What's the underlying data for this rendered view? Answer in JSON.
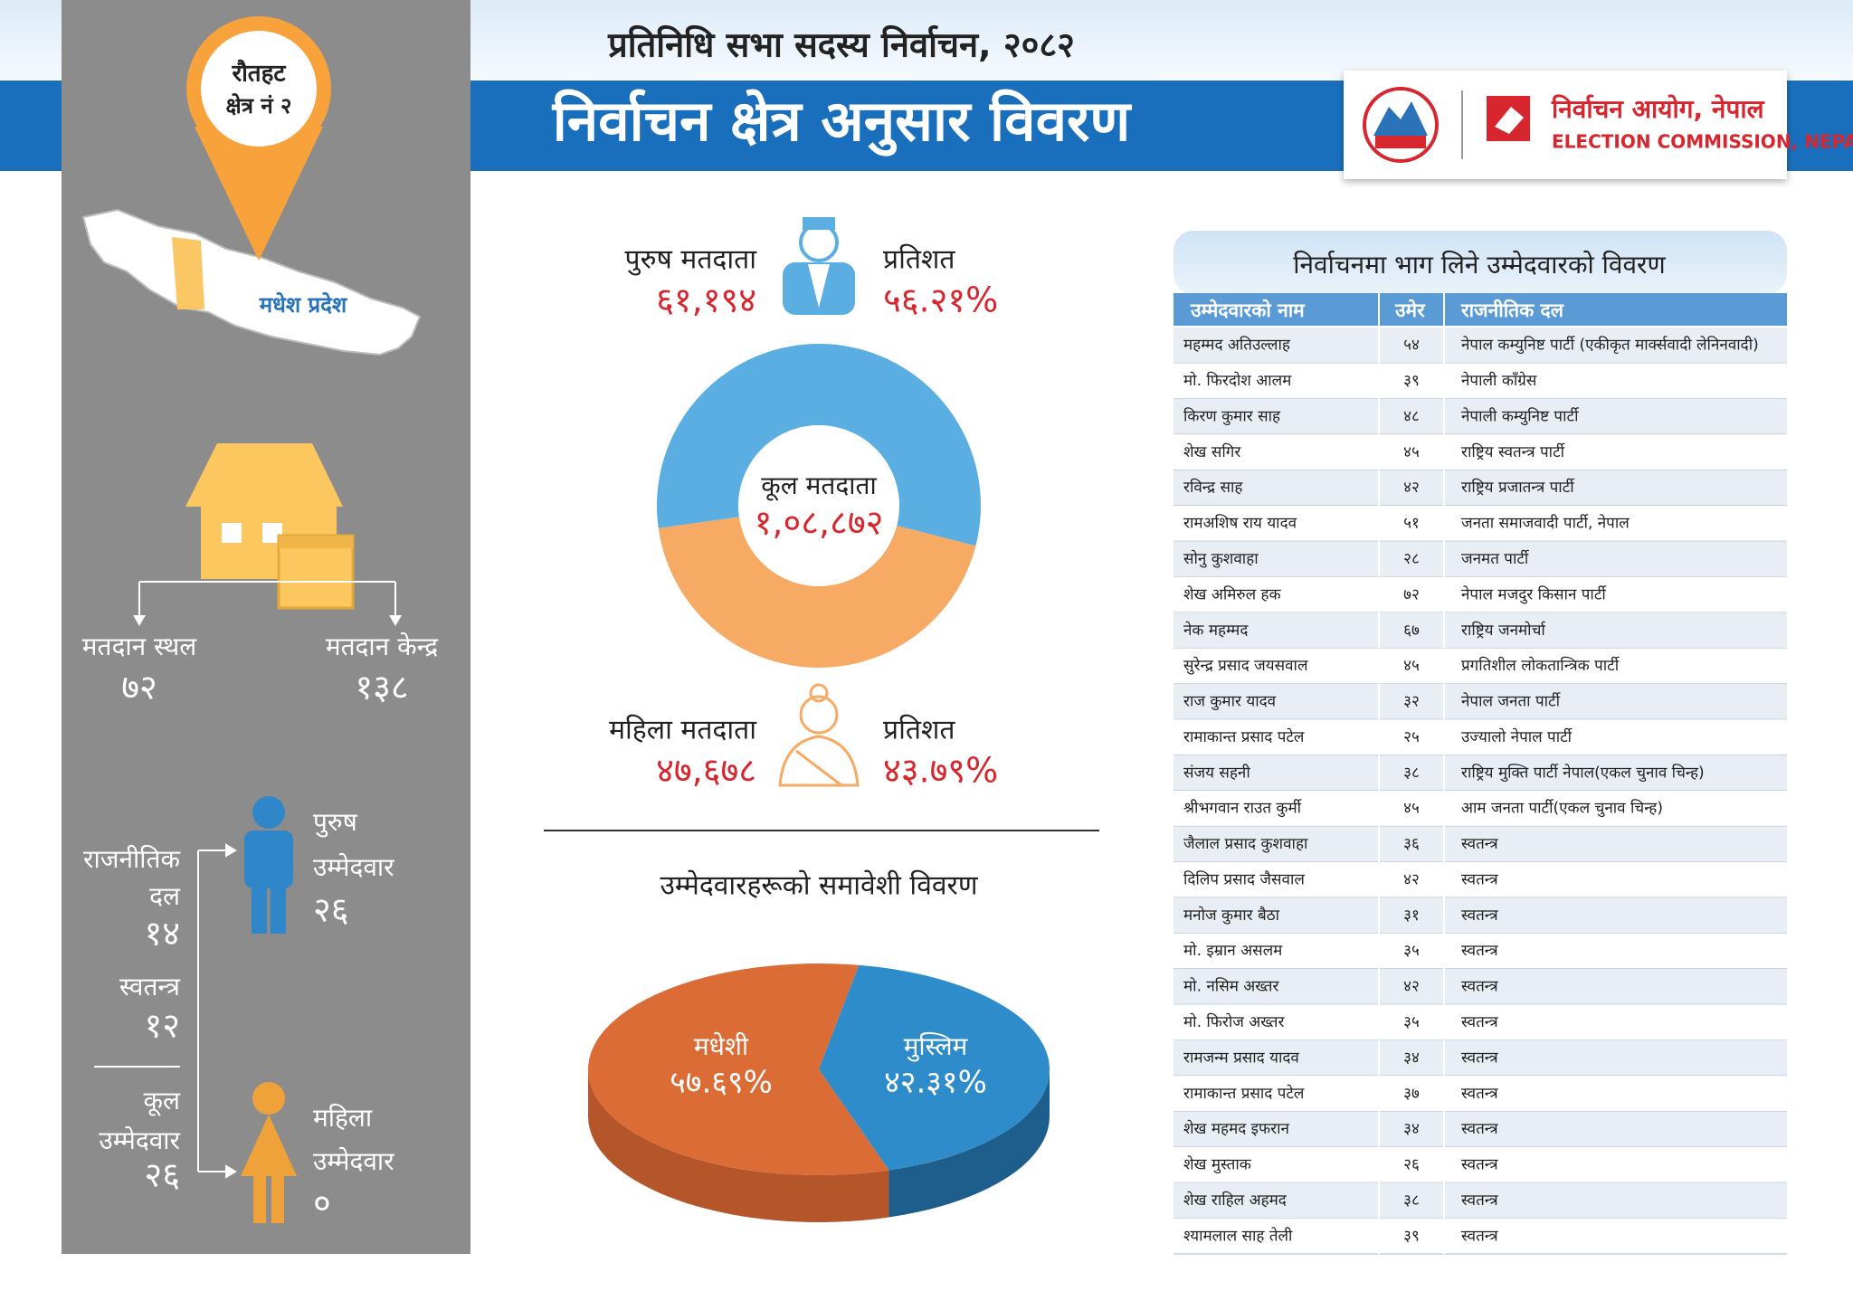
{
  "header": {
    "subtitle": "प्रतिनिधि सभा सदस्य निर्वाचन, २०८२",
    "title": "निर्वाचन क्षेत्र अनुसार विवरण",
    "logo_ne": "निर्वाचन आयोग, नेपाल",
    "logo_en": "ELECTION COMMISSION, NEPAL"
  },
  "location": {
    "district": "रौतहट",
    "constituency": "क्षेत्र नं २",
    "province": "मधेश प्रदेश"
  },
  "polling": {
    "places_label": "मतदान स्थल",
    "places": "७२",
    "centers_label": "मतदान केन्द्र",
    "centers": "१३८"
  },
  "candidates_summary": {
    "party_label": [
      "राजनीतिक",
      "दल"
    ],
    "party_count": "१४",
    "independent_label": "स्वतन्त्र",
    "independent_count": "१२",
    "total_label": [
      "कूल",
      "उम्मेदवार"
    ],
    "total_count": "२६",
    "male_label": [
      "पुरुष",
      "उम्मेदवार"
    ],
    "male_count": "२६",
    "female_label": [
      "महिला",
      "उम्मेदवार"
    ],
    "female_count": "०"
  },
  "voters": {
    "male_label": "पुरुष मतदाता",
    "male_count": "६१,१९४",
    "percent_label": "प्रतिशत",
    "total_label": "कूल मतदाता",
    "total_count": "१,०८,८७२",
    "female_label": "महिला मतदाता",
    "female_count": "४७,६७८",
    "chart": {
      "type": "donut",
      "values": [
        56.21,
        43.79
      ],
      "value_labels": [
        "५६.२१%",
        "४३.७९%"
      ],
      "colors": [
        "#5aaee2",
        "#f6aa63"
      ]
    }
  },
  "inclusion": {
    "title": "उम्मेदवारहरूको समावेशी विवरण",
    "chart": {
      "type": "pie3d",
      "categories": [
        "मधेशी",
        "मुस्लिम"
      ],
      "values": [
        57.69,
        42.31
      ],
      "value_labels": [
        "५७.६९%",
        "४२.३१%"
      ],
      "colors": [
        "#dc6c35",
        "#2e8ccb"
      ],
      "side_colors": [
        "#b5552a",
        "#1e5e8d"
      ]
    }
  },
  "table": {
    "title": "निर्वाचनमा भाग लिने उम्मेदवारको विवरण",
    "columns": [
      "उम्मेदवारको नाम",
      "उमेर",
      "राजनीतिक दल"
    ],
    "rows": [
      [
        "महम्मद अतिउल्लाह",
        "५४",
        "नेपाल कम्युनिष्ट पार्टी (एकीकृत मार्क्सवादी लेनिनवादी)"
      ],
      [
        "मो. फिरदोश आलम",
        "३९",
        "नेपाली काँग्रेस"
      ],
      [
        "किरण कुमार साह",
        "४८",
        "नेपाली कम्युनिष्ट पार्टी"
      ],
      [
        "शेख सगिर",
        "४५",
        "राष्ट्रिय स्वतन्त्र पार्टी"
      ],
      [
        "रविन्द्र साह",
        "४२",
        "राष्ट्रिय प्रजातन्त्र पार्टी"
      ],
      [
        "रामअशिष राय यादव",
        "५१",
        "जनता समाजवादी पार्टी, नेपाल"
      ],
      [
        "सोनु कुशवाहा",
        "२८",
        "जनमत पार्टी"
      ],
      [
        "शेख अमिरुल हक",
        "७२",
        "नेपाल मजदुर किसान पार्टी"
      ],
      [
        "नेक महम्मद",
        "६७",
        "राष्ट्रिय जनमोर्चा"
      ],
      [
        "सुरेन्द्र प्रसाद जयसवाल",
        "४५",
        "प्रगतिशील लोकतान्त्रिक पार्टी"
      ],
      [
        "राज कुमार यादव",
        "३२",
        "नेपाल जनता पार्टी"
      ],
      [
        "रामाकान्त प्रसाद पटेल",
        "२५",
        "उज्यालो नेपाल पार्टी"
      ],
      [
        "संजय सहनी",
        "३८",
        "राष्ट्रिय मुक्ति पार्टी नेपाल(एकल चुनाव चिन्ह)"
      ],
      [
        "श्रीभगवान राउत कुर्मी",
        "४५",
        "आम जनता पार्टी(एकल चुनाव चिन्ह)"
      ],
      [
        "जैलाल प्रसाद कुशवाहा",
        "३६",
        "स्वतन्त्र"
      ],
      [
        "दिलिप प्रसाद जैसवाल",
        "४२",
        "स्वतन्त्र"
      ],
      [
        "मनोज कुमार बैठा",
        "३१",
        "स्वतन्त्र"
      ],
      [
        "मो. इम्रान असलम",
        "३५",
        "स्वतन्त्र"
      ],
      [
        "मो. नसिम अख्तर",
        "४२",
        "स्वतन्त्र"
      ],
      [
        "मो. फिरोज अख्तर",
        "३५",
        "स्वतन्त्र"
      ],
      [
        "रामजन्म प्रसाद यादव",
        "३४",
        "स्वतन्त्र"
      ],
      [
        "रामाकान्त प्रसाद पटेल",
        "३७",
        "स्वतन्त्र"
      ],
      [
        "शेख महमद इफरान",
        "३४",
        "स्वतन्त्र"
      ],
      [
        "शेख मुस्ताक",
        "२६",
        "स्वतन्त्र"
      ],
      [
        "शेख राहिल अहमद",
        "३८",
        "स्वतन्त्र"
      ],
      [
        "श्यामलाल साह तेली",
        "३९",
        "स्वतन्त्र"
      ]
    ]
  }
}
